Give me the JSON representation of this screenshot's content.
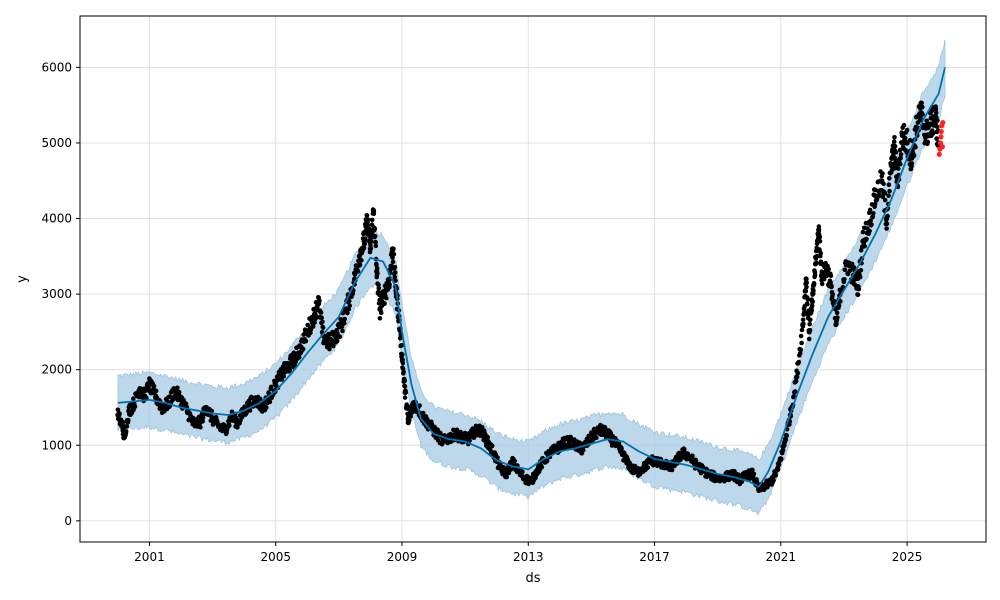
{
  "chart_data": {
    "type": "line",
    "title": "",
    "xlabel": "ds",
    "ylabel": "y",
    "xlim": [
      1998.8,
      2027.5
    ],
    "ylim": [
      -280,
      6680
    ],
    "x_ticks": [
      2001,
      2005,
      2009,
      2013,
      2017,
      2021,
      2025
    ],
    "x_tick_labels": [
      "2001",
      "2005",
      "2009",
      "2013",
      "2017",
      "2021",
      "2025"
    ],
    "y_ticks": [
      0,
      1000,
      2000,
      3000,
      4000,
      5000,
      6000
    ],
    "y_tick_labels": [
      "0",
      "1000",
      "2000",
      "3000",
      "4000",
      "5000",
      "6000"
    ],
    "grid": true,
    "legend": "none",
    "colors": {
      "forecast": "#0072b2",
      "interval": "#a6cbe3",
      "observed": "#000000",
      "outlier": "#ff2020"
    },
    "forecast": [
      [
        2000.0,
        1560
      ],
      [
        2000.5,
        1580
      ],
      [
        2001.0,
        1600
      ],
      [
        2001.5,
        1560
      ],
      [
        2002.0,
        1500
      ],
      [
        2002.5,
        1460
      ],
      [
        2003.0,
        1420
      ],
      [
        2003.5,
        1400
      ],
      [
        2004.0,
        1460
      ],
      [
        2004.5,
        1560
      ],
      [
        2005.0,
        1720
      ],
      [
        2005.5,
        1950
      ],
      [
        2006.0,
        2220
      ],
      [
        2006.5,
        2470
      ],
      [
        2007.0,
        2700
      ],
      [
        2007.5,
        3150
      ],
      [
        2008.0,
        3480
      ],
      [
        2008.4,
        3430
      ],
      [
        2008.8,
        3100
      ],
      [
        2009.0,
        2500
      ],
      [
        2009.3,
        1800
      ],
      [
        2009.6,
        1350
      ],
      [
        2010.0,
        1150
      ],
      [
        2010.5,
        1080
      ],
      [
        2011.0,
        1050
      ],
      [
        2011.5,
        960
      ],
      [
        2012.0,
        800
      ],
      [
        2012.5,
        720
      ],
      [
        2013.0,
        680
      ],
      [
        2013.5,
        820
      ],
      [
        2014.0,
        920
      ],
      [
        2014.5,
        960
      ],
      [
        2015.0,
        1020
      ],
      [
        2015.5,
        1080
      ],
      [
        2016.0,
        1050
      ],
      [
        2016.5,
        920
      ],
      [
        2017.0,
        820
      ],
      [
        2017.5,
        780
      ],
      [
        2018.0,
        740
      ],
      [
        2018.5,
        680
      ],
      [
        2019.0,
        620
      ],
      [
        2019.5,
        580
      ],
      [
        2020.0,
        520
      ],
      [
        2020.3,
        450
      ],
      [
        2020.6,
        650
      ],
      [
        2021.0,
        1050
      ],
      [
        2021.5,
        1650
      ],
      [
        2022.0,
        2200
      ],
      [
        2022.5,
        2700
      ],
      [
        2023.0,
        3050
      ],
      [
        2023.5,
        3400
      ],
      [
        2024.0,
        3800
      ],
      [
        2024.5,
        4250
      ],
      [
        2025.0,
        4800
      ],
      [
        2025.5,
        5300
      ],
      [
        2026.0,
        5650
      ],
      [
        2026.2,
        6000
      ]
    ],
    "interval_half_width": 360,
    "observed": [
      [
        2000.0,
        1400
      ],
      [
        2000.15,
        1250
      ],
      [
        2000.2,
        1100
      ],
      [
        2000.35,
        1450
      ],
      [
        2000.5,
        1550
      ],
      [
        2000.7,
        1750
      ],
      [
        2000.85,
        1650
      ],
      [
        2001.0,
        1800
      ],
      [
        2001.2,
        1650
      ],
      [
        2001.4,
        1500
      ],
      [
        2001.6,
        1550
      ],
      [
        2001.8,
        1720
      ],
      [
        2002.0,
        1600
      ],
      [
        2002.2,
        1450
      ],
      [
        2002.4,
        1280
      ],
      [
        2002.6,
        1300
      ],
      [
        2002.8,
        1500
      ],
      [
        2003.0,
        1350
      ],
      [
        2003.2,
        1250
      ],
      [
        2003.4,
        1200
      ],
      [
        2003.6,
        1380
      ],
      [
        2003.8,
        1300
      ],
      [
        2004.0,
        1450
      ],
      [
        2004.2,
        1550
      ],
      [
        2004.4,
        1600
      ],
      [
        2004.6,
        1500
      ],
      [
        2004.8,
        1650
      ],
      [
        2005.0,
        1800
      ],
      [
        2005.2,
        1950
      ],
      [
        2005.4,
        2050
      ],
      [
        2005.6,
        2150
      ],
      [
        2005.8,
        2300
      ],
      [
        2006.0,
        2500
      ],
      [
        2006.2,
        2700
      ],
      [
        2006.35,
        2900
      ],
      [
        2006.5,
        2450
      ],
      [
        2006.7,
        2350
      ],
      [
        2006.9,
        2450
      ],
      [
        2007.1,
        2600
      ],
      [
        2007.3,
        2900
      ],
      [
        2007.5,
        3200
      ],
      [
        2007.65,
        3500
      ],
      [
        2007.8,
        3700
      ],
      [
        2007.9,
        3950
      ],
      [
        2008.0,
        3600
      ],
      [
        2008.1,
        4100
      ],
      [
        2008.2,
        3300
      ],
      [
        2008.3,
        2800
      ],
      [
        2008.45,
        3000
      ],
      [
        2008.6,
        3200
      ],
      [
        2008.7,
        3600
      ],
      [
        2008.8,
        3100
      ],
      [
        2008.9,
        2700
      ],
      [
        2009.0,
        2200
      ],
      [
        2009.1,
        1700
      ],
      [
        2009.2,
        1300
      ],
      [
        2009.35,
        1550
      ],
      [
        2009.5,
        1500
      ],
      [
        2009.7,
        1350
      ],
      [
        2009.9,
        1250
      ],
      [
        2010.1,
        1150
      ],
      [
        2010.3,
        1050
      ],
      [
        2010.5,
        1100
      ],
      [
        2010.7,
        1150
      ],
      [
        2010.9,
        1100
      ],
      [
        2011.1,
        1080
      ],
      [
        2011.3,
        1180
      ],
      [
        2011.5,
        1200
      ],
      [
        2011.7,
        1050
      ],
      [
        2011.9,
        900
      ],
      [
        2012.1,
        700
      ],
      [
        2012.3,
        620
      ],
      [
        2012.5,
        780
      ],
      [
        2012.7,
        650
      ],
      [
        2012.9,
        560
      ],
      [
        2013.1,
        520
      ],
      [
        2013.3,
        680
      ],
      [
        2013.5,
        800
      ],
      [
        2013.7,
        900
      ],
      [
        2013.9,
        950
      ],
      [
        2014.1,
        1020
      ],
      [
        2014.3,
        1050
      ],
      [
        2014.5,
        1000
      ],
      [
        2014.7,
        950
      ],
      [
        2014.9,
        1050
      ],
      [
        2015.1,
        1150
      ],
      [
        2015.3,
        1200
      ],
      [
        2015.5,
        1150
      ],
      [
        2015.7,
        1050
      ],
      [
        2015.9,
        950
      ],
      [
        2016.1,
        800
      ],
      [
        2016.3,
        680
      ],
      [
        2016.5,
        650
      ],
      [
        2016.7,
        720
      ],
      [
        2016.9,
        800
      ],
      [
        2017.1,
        780
      ],
      [
        2017.3,
        750
      ],
      [
        2017.5,
        700
      ],
      [
        2017.7,
        800
      ],
      [
        2017.9,
        900
      ],
      [
        2018.1,
        850
      ],
      [
        2018.3,
        750
      ],
      [
        2018.5,
        680
      ],
      [
        2018.7,
        620
      ],
      [
        2018.9,
        580
      ],
      [
        2019.1,
        560
      ],
      [
        2019.3,
        590
      ],
      [
        2019.5,
        610
      ],
      [
        2019.7,
        540
      ],
      [
        2019.9,
        600
      ],
      [
        2020.1,
        620
      ],
      [
        2020.3,
        420
      ],
      [
        2020.5,
        460
      ],
      [
        2020.7,
        520
      ],
      [
        2020.9,
        680
      ],
      [
        2021.1,
        1000
      ],
      [
        2021.3,
        1400
      ],
      [
        2021.5,
        1900
      ],
      [
        2021.7,
        2600
      ],
      [
        2021.8,
        3200
      ],
      [
        2021.9,
        2500
      ],
      [
        2022.0,
        2900
      ],
      [
        2022.1,
        3400
      ],
      [
        2022.2,
        3850
      ],
      [
        2022.3,
        3250
      ],
      [
        2022.45,
        3350
      ],
      [
        2022.6,
        3100
      ],
      [
        2022.75,
        2600
      ],
      [
        2022.9,
        3050
      ],
      [
        2023.1,
        3400
      ],
      [
        2023.3,
        3250
      ],
      [
        2023.45,
        3100
      ],
      [
        2023.6,
        3700
      ],
      [
        2023.8,
        3950
      ],
      [
        2024.0,
        4300
      ],
      [
        2024.2,
        4500
      ],
      [
        2024.35,
        4000
      ],
      [
        2024.5,
        4700
      ],
      [
        2024.6,
        4900
      ],
      [
        2024.7,
        4500
      ],
      [
        2024.85,
        5100
      ],
      [
        2025.0,
        5000
      ],
      [
        2025.15,
        4800
      ],
      [
        2025.3,
        5200
      ],
      [
        2025.45,
        5400
      ],
      [
        2025.6,
        5100
      ],
      [
        2025.75,
        5250
      ],
      [
        2025.9,
        5350
      ],
      [
        2026.0,
        5000
      ]
    ],
    "outliers": [
      [
        2026.02,
        4850
      ],
      [
        2026.04,
        4920
      ],
      [
        2026.06,
        5000
      ],
      [
        2026.07,
        5080
      ],
      [
        2026.08,
        5150
      ],
      [
        2026.1,
        5230
      ],
      [
        2026.12,
        4950
      ],
      [
        2026.13,
        5270
      ]
    ]
  }
}
